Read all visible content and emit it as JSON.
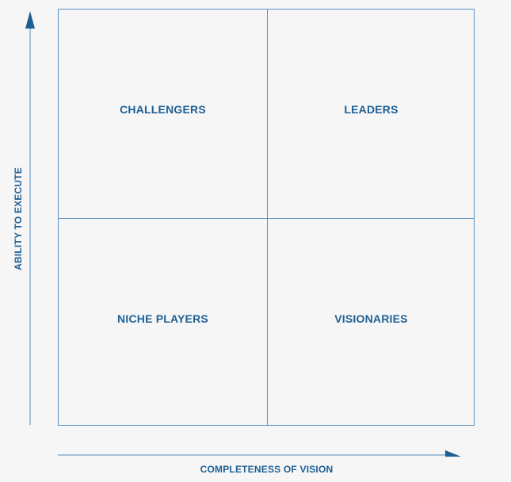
{
  "quadrants": {
    "top_left": "CHALLENGERS",
    "top_right": "LEADERS",
    "bottom_left": "NICHE PLAYERS",
    "bottom_right": "VISIONARIES"
  },
  "axes": {
    "y_label": "ABILITY TO EXECUTE",
    "x_label": "COMPLETENESS OF VISION"
  },
  "colors": {
    "line": "#5a8fc0",
    "text": "#1d5f94",
    "arrow": "#1d5f94",
    "background": "#f6f6f6"
  }
}
